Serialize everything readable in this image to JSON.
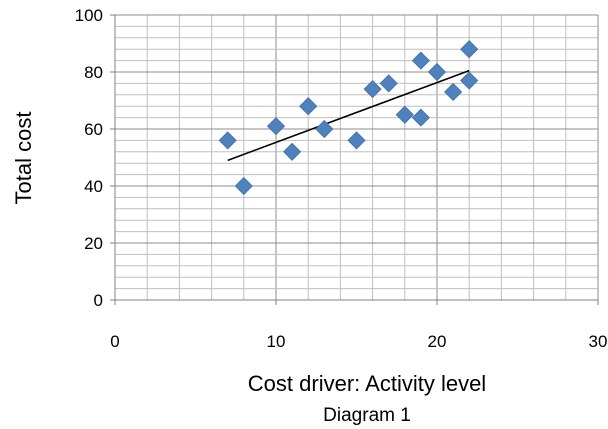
{
  "chart_data": {
    "type": "scatter",
    "title": "",
    "xlabel": "Cost driver: Activity level",
    "ylabel": "Total cost",
    "caption": "Diagram 1",
    "xlim": [
      0,
      30
    ],
    "ylim": [
      0,
      100
    ],
    "x_ticks": [
      "0",
      "10",
      "20",
      "30"
    ],
    "y_ticks": [
      "0",
      "20",
      "40",
      "60",
      "80",
      "100"
    ],
    "grid": true,
    "legend": "none",
    "marker_color": "#4f81bd",
    "trendline": {
      "x": [
        7,
        22
      ],
      "y": [
        49,
        80.5
      ],
      "color": "#000000"
    },
    "points": [
      {
        "x": 7,
        "y": 56
      },
      {
        "x": 8,
        "y": 40
      },
      {
        "x": 10,
        "y": 61
      },
      {
        "x": 11,
        "y": 52
      },
      {
        "x": 12,
        "y": 68
      },
      {
        "x": 13,
        "y": 60
      },
      {
        "x": 15,
        "y": 56
      },
      {
        "x": 16,
        "y": 74
      },
      {
        "x": 17,
        "y": 76
      },
      {
        "x": 18,
        "y": 65
      },
      {
        "x": 19,
        "y": 84
      },
      {
        "x": 19,
        "y": 64
      },
      {
        "x": 20,
        "y": 80
      },
      {
        "x": 21,
        "y": 73
      },
      {
        "x": 22,
        "y": 88
      },
      {
        "x": 22,
        "y": 77
      }
    ]
  }
}
